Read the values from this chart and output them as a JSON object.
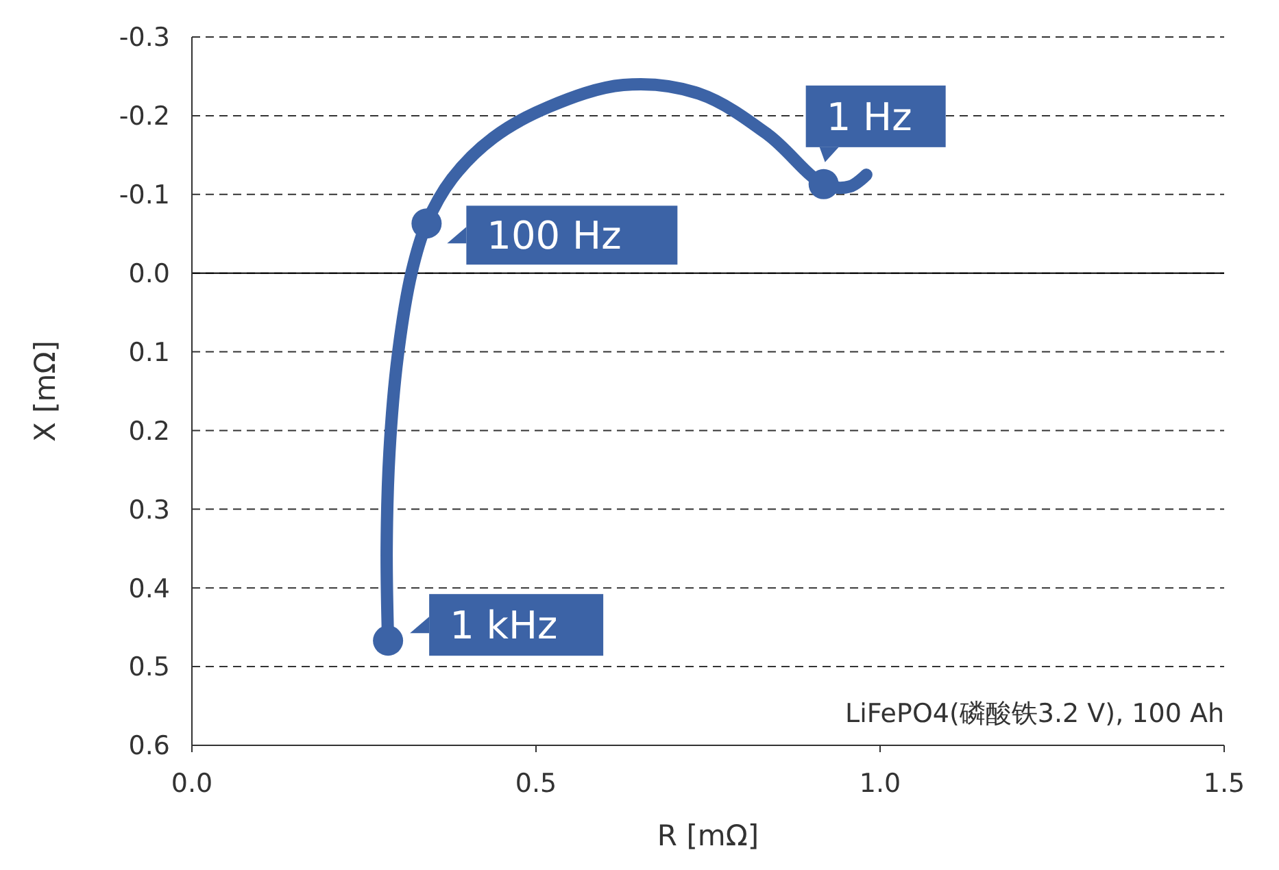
{
  "chart_data": {
    "type": "line",
    "xlabel": "R [mΩ]",
    "ylabel": "X [mΩ]",
    "xlim": [
      0,
      1.5
    ],
    "ylim": [
      0.6,
      -0.3
    ],
    "xticks": [
      {
        "value": 0,
        "label": "0.0"
      },
      0.5,
      {
        "value": 1,
        "label": "1.0"
      },
      1.5
    ],
    "yticks": [
      -0.3,
      -0.2,
      -0.1,
      {
        "value": 0,
        "label": "0.0"
      },
      0.1,
      0.2,
      0.3,
      0.4,
      0.5,
      0.6
    ],
    "grid": "y",
    "ref_lines": [
      {
        "axis": "y",
        "value": 0,
        "color": "#000000",
        "line_style": "solid"
      }
    ],
    "series": [
      {
        "color": "#3c63a6",
        "marker": "none",
        "x": [
          0.285,
          0.283,
          0.287,
          0.299,
          0.319,
          0.341,
          0.378,
          0.438,
          0.518,
          0.627,
          0.737,
          0.837,
          0.918,
          0.956,
          0.98
        ],
        "values": [
          0.467,
          0.35,
          0.228,
          0.106,
          0.0,
          -0.063,
          -0.12,
          -0.172,
          -0.211,
          -0.239,
          -0.228,
          -0.176,
          -0.113,
          -0.11,
          -0.125
        ]
      },
      {
        "type": "scatter",
        "color": "#3c63a6",
        "marker": "circle",
        "x": [
          0.285,
          0.341,
          0.918
        ],
        "values": [
          0.467,
          -0.063,
          -0.113
        ]
      }
    ],
    "annotations": [
      {
        "text": "1 kHz",
        "x": 0.285,
        "y": 0.467
      },
      {
        "text": "100 Hz",
        "x": 0.341,
        "y": -0.063
      },
      {
        "text": "1 Hz",
        "x": 0.918,
        "y": -0.113
      },
      "LiFePO4(磷酸铁3.2 V), 100 Ah"
    ]
  }
}
